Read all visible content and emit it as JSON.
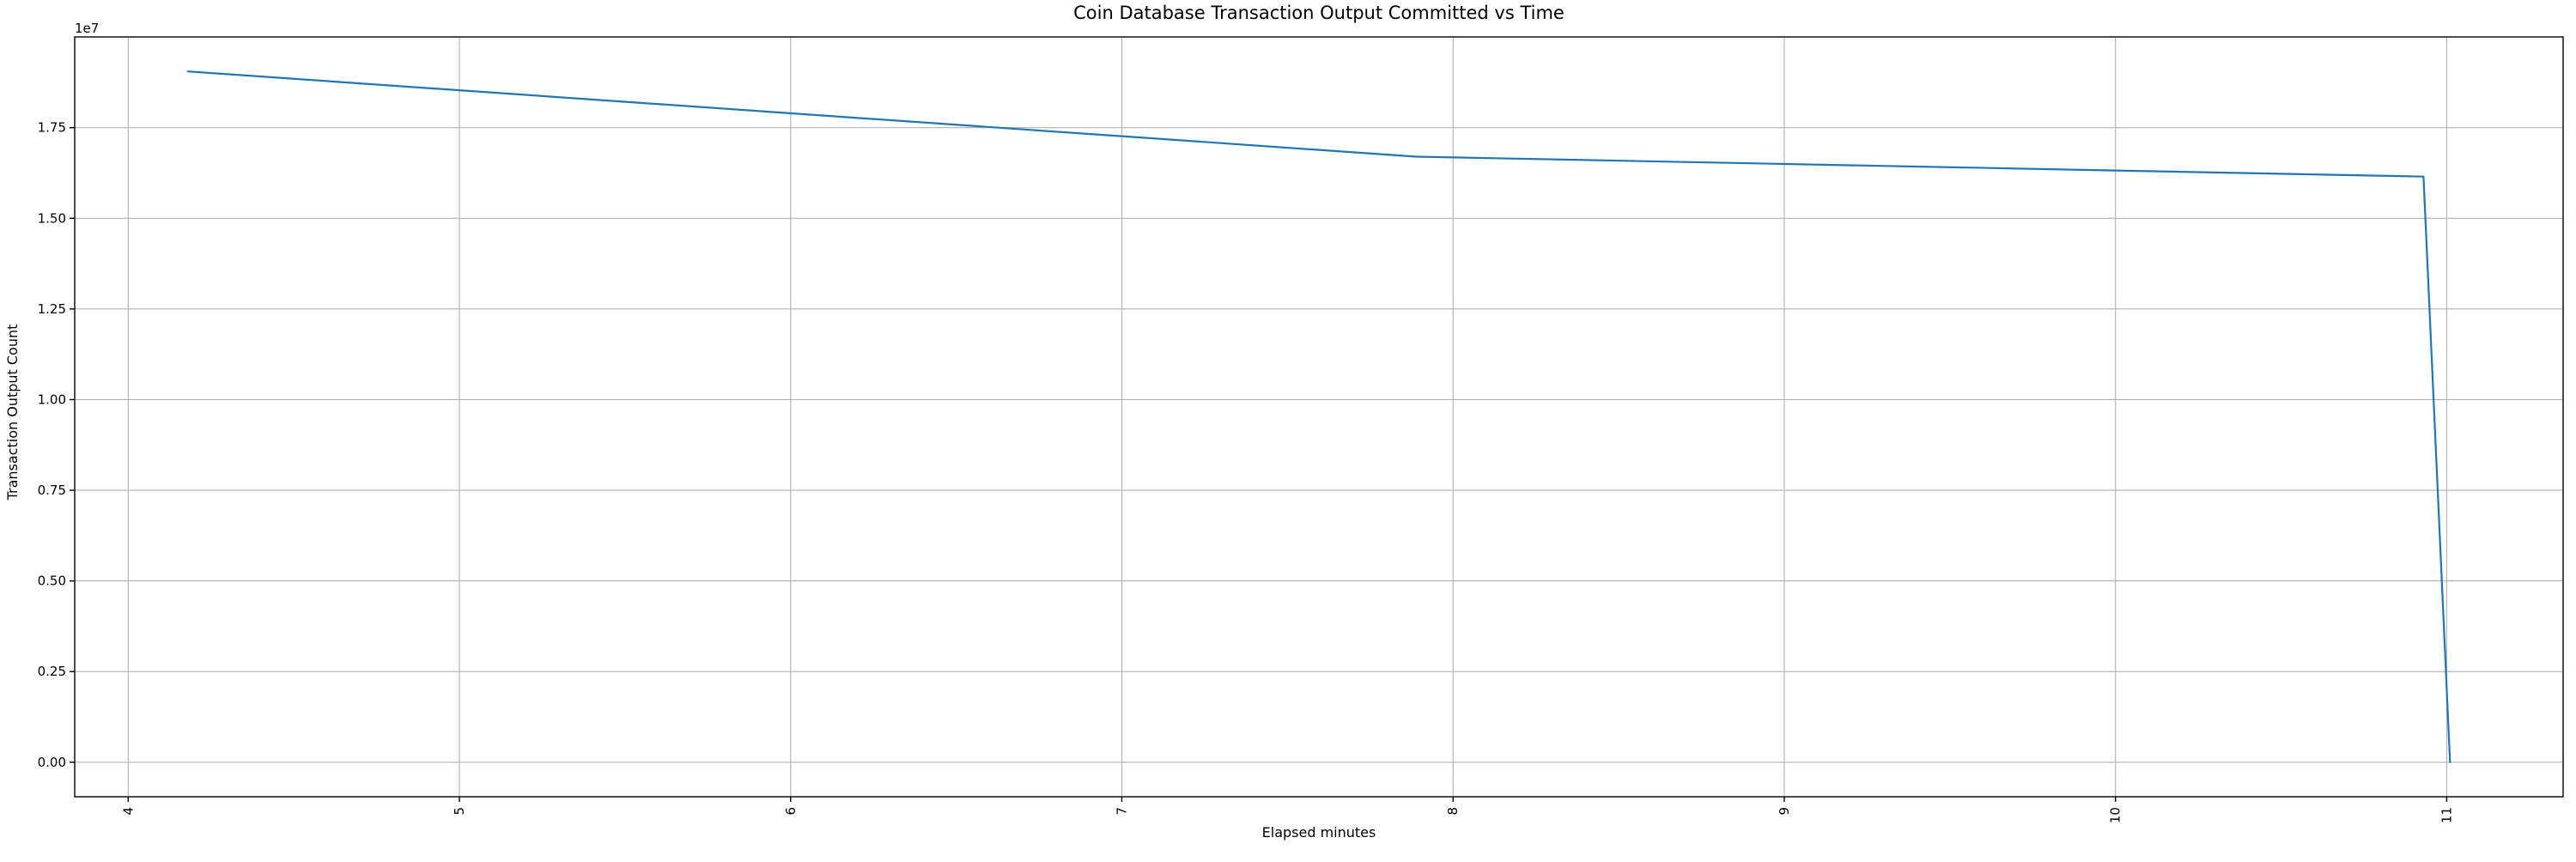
{
  "title": "Coin Database Transaction Output Committed vs Time",
  "chart_data": {
    "type": "line",
    "title": "Coin Database Transaction Output Committed vs Time",
    "xlabel": "Elapsed minutes",
    "ylabel": "Transaction Output Count",
    "y_offset_label": "1e7",
    "grid": true,
    "legend": "none",
    "line_color": "#1f77b4",
    "grid_color": "#b0b0b0",
    "spine_color": "#000000",
    "xlim": [
      3.8385,
      11.3515
    ],
    "ylim": [
      -952500,
      20002500
    ],
    "x_ticks": {
      "values": [
        4,
        5,
        6,
        7,
        8,
        9,
        10,
        11
      ],
      "labels": [
        "4",
        "5",
        "6",
        "7",
        "8",
        "9",
        "10",
        "11"
      ],
      "rotation_deg": 90
    },
    "y_ticks": {
      "values": [
        0,
        2500000,
        5000000,
        7500000,
        10000000,
        12500000,
        15000000,
        17500000
      ],
      "labels": [
        "0.00",
        "0.25",
        "0.50",
        "0.75",
        "1.00",
        "1.25",
        "1.50",
        "1.75"
      ],
      "multiplier": "1e7"
    },
    "series": [
      {
        "name": "Transaction Output Count",
        "x": [
          4.18,
          7.89,
          10.93,
          11.01
        ],
        "y": [
          19050000,
          16700000,
          16150000,
          0
        ]
      }
    ]
  }
}
